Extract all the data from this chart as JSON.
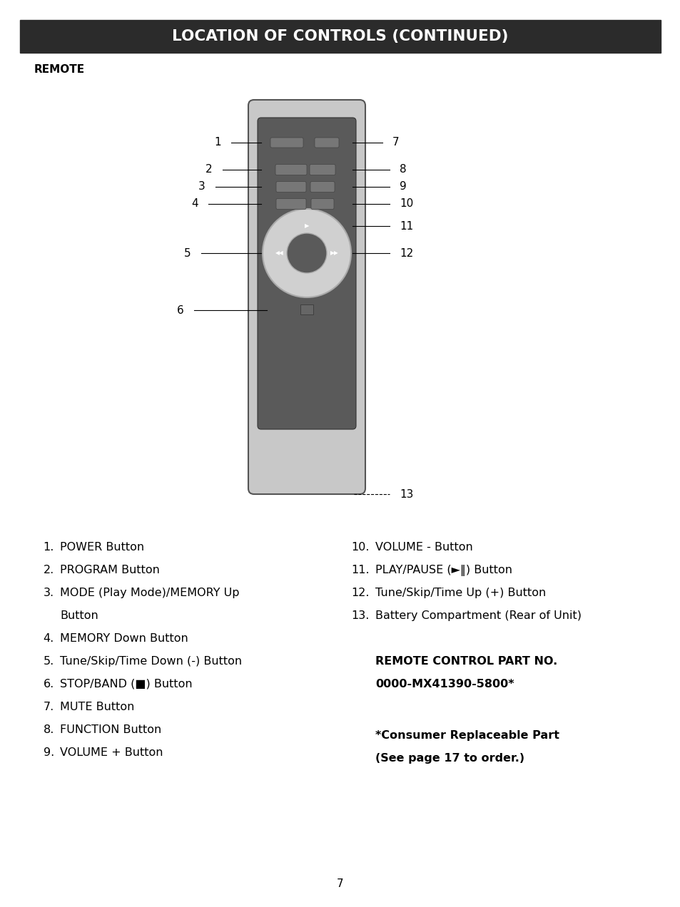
{
  "title": "LOCATION OF CONTROLS (CONTINUED)",
  "title_bg": "#2b2b2b",
  "title_color": "#ffffff",
  "section_label": "REMOTE",
  "part_no_label": "REMOTE CONTROL PART NO.",
  "part_no_value": "0000-MX41390-5800*",
  "consumer_label": "*Consumer Replaceable Part",
  "consumer_value": "(See page 17 to order.)",
  "page_number": "7",
  "remote_silver": "#c8c8c8",
  "remote_dark_panel": "#5a5a5a",
  "remote_btn_area": "#444444",
  "remote_circle_outer": "#d0d0d0",
  "remote_circle_inner": "#888888",
  "btn_color": "#666666",
  "btn_edge": "#333333"
}
